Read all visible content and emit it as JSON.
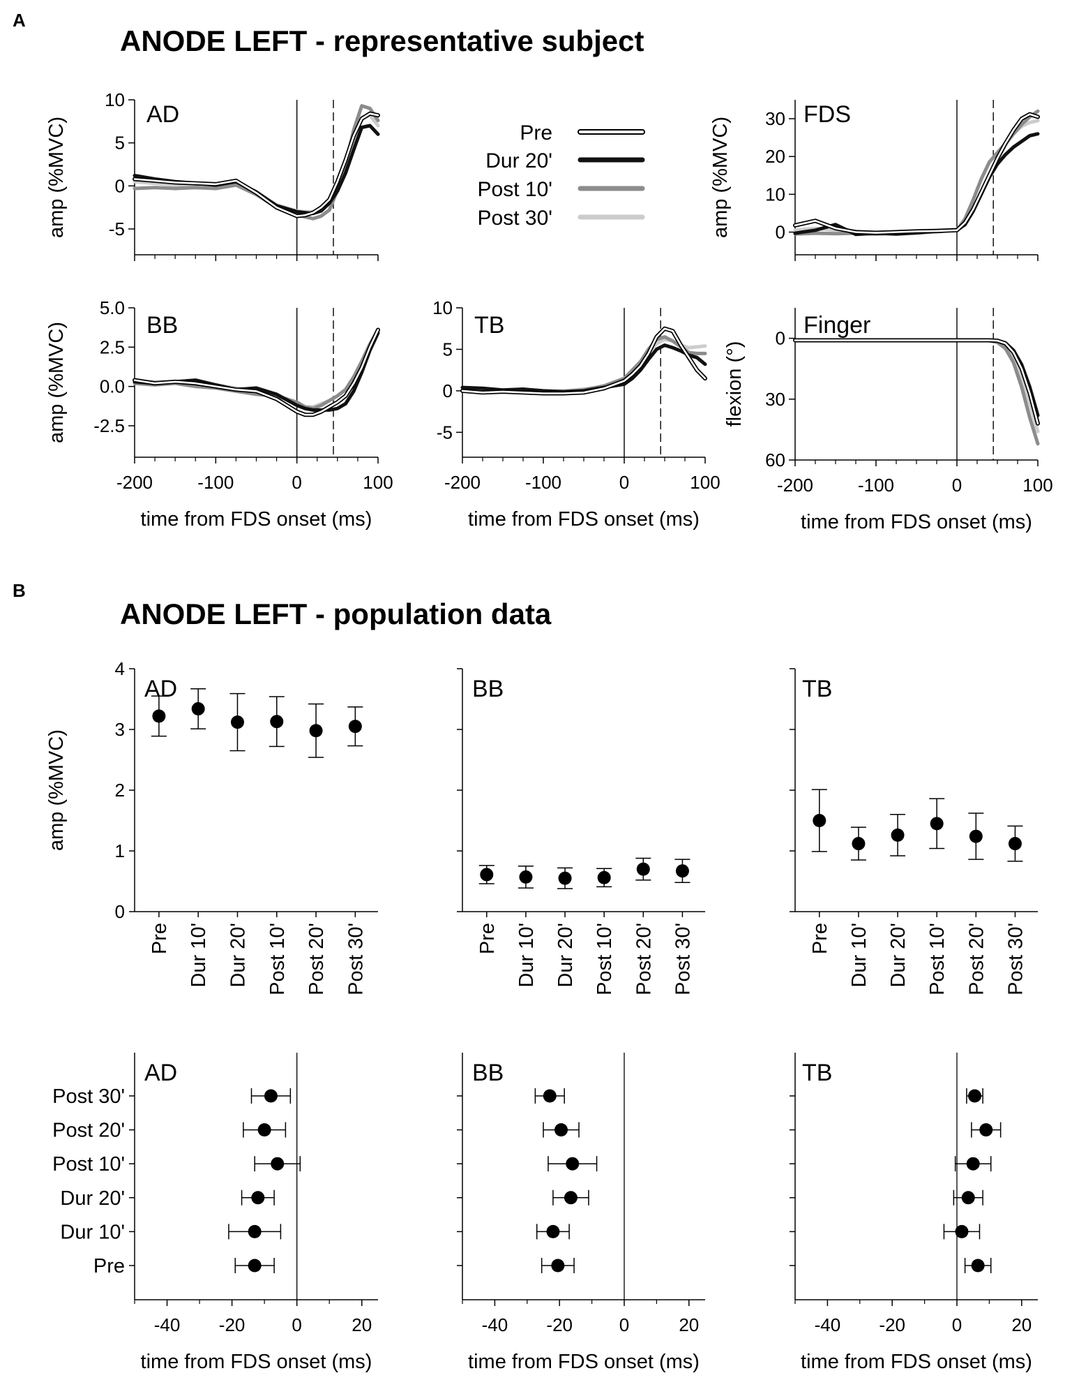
{
  "panel_a": {
    "letter": "A",
    "title": "ANODE LEFT - representative subject"
  },
  "panel_b": {
    "letter": "B",
    "title": "ANODE LEFT - population data"
  },
  "legend": {
    "items": [
      {
        "label": "Pre",
        "style": "outlined",
        "color": "#000000"
      },
      {
        "label": "Dur 20'",
        "style": "solid",
        "color": "#111111"
      },
      {
        "label": "Post 10'",
        "style": "solid",
        "color": "#8c8c8c"
      },
      {
        "label": "Post 30'",
        "style": "solid",
        "color": "#cccccc"
      }
    ]
  },
  "chart_data": [
    {
      "id": "a_ad",
      "type": "line",
      "label": "AD",
      "xlabel": "",
      "ylabel": "amp (%MVC)",
      "xlim": [
        -200,
        100
      ],
      "ylim": [
        -8,
        10
      ],
      "xticks": [
        -200,
        -100,
        0,
        100
      ],
      "xtick_labels": [],
      "yticks": [
        -5,
        0,
        5,
        10
      ],
      "ytick_labels": [
        "-5",
        "0",
        "5",
        "10"
      ],
      "vlines": [
        {
          "x": 0,
          "style": "solid"
        },
        {
          "x": 45,
          "style": "dashed"
        }
      ],
      "x": [
        -200,
        -175,
        -150,
        -125,
        -100,
        -75,
        -50,
        -25,
        0,
        10,
        20,
        30,
        40,
        50,
        60,
        70,
        80,
        90,
        100
      ],
      "series": [
        {
          "name": "Pre",
          "values": [
            0.8,
            0.6,
            0.4,
            0.3,
            0.2,
            0.6,
            -0.8,
            -2.5,
            -3.5,
            -3.4,
            -3.1,
            -2.5,
            -1.6,
            0.5,
            3.0,
            5.8,
            7.8,
            8.4,
            8.2
          ]
        },
        {
          "name": "Dur 20'",
          "values": [
            1.2,
            0.8,
            0.5,
            0.3,
            0.1,
            0.5,
            -0.7,
            -2.3,
            -3.0,
            -3.1,
            -3.2,
            -2.9,
            -2.0,
            -0.6,
            1.5,
            4.2,
            6.8,
            7.0,
            6.0
          ]
        },
        {
          "name": "Post 10'",
          "values": [
            -0.3,
            -0.2,
            -0.3,
            -0.2,
            -0.3,
            0.1,
            -1.0,
            -2.5,
            -3.3,
            -3.6,
            -3.8,
            -3.5,
            -2.8,
            -0.5,
            2.5,
            6.5,
            9.3,
            9.0,
            7.6
          ]
        },
        {
          "name": "Post 30'",
          "values": [
            0.5,
            0.3,
            0.1,
            0.0,
            -0.1,
            0.2,
            -0.8,
            -2.2,
            -2.9,
            -3.0,
            -3.0,
            -2.7,
            -2.0,
            -0.6,
            1.8,
            5.2,
            8.0,
            8.2,
            7.0
          ]
        }
      ]
    },
    {
      "id": "a_fds",
      "type": "line",
      "label": "FDS",
      "xlabel": "",
      "ylabel": "amp (%MVC)",
      "xlim": [
        -200,
        100
      ],
      "ylim": [
        -6,
        35
      ],
      "xticks": [
        -200,
        -100,
        0,
        100
      ],
      "xtick_labels": [],
      "yticks": [
        0,
        10,
        20,
        30
      ],
      "ytick_labels": [
        "0",
        "10",
        "20",
        "30"
      ],
      "vlines": [
        {
          "x": 0,
          "style": "solid"
        },
        {
          "x": 45,
          "style": "dashed"
        }
      ],
      "x": [
        -200,
        -175,
        -150,
        -125,
        -100,
        -75,
        -50,
        -25,
        0,
        10,
        20,
        30,
        40,
        50,
        60,
        70,
        80,
        90,
        100
      ],
      "series": [
        {
          "name": "Pre",
          "values": [
            1.8,
            3.0,
            1.0,
            0.0,
            -0.2,
            0.0,
            0.2,
            0.3,
            0.5,
            2.5,
            6.0,
            10.5,
            15.0,
            19.5,
            23.5,
            27.0,
            30.0,
            31.2,
            30.5
          ]
        },
        {
          "name": "Dur 20'",
          "values": [
            -0.3,
            0.5,
            2.0,
            -0.6,
            -0.3,
            -0.5,
            -0.2,
            0.3,
            0.5,
            2.0,
            5.5,
            10.0,
            14.5,
            18.0,
            20.5,
            22.5,
            24.0,
            25.5,
            26.0
          ]
        },
        {
          "name": "Post 10'",
          "values": [
            -0.5,
            -0.3,
            -0.4,
            -0.3,
            -0.5,
            -0.3,
            -0.2,
            0.1,
            0.5,
            3.5,
            8.5,
            14.0,
            18.5,
            21.0,
            23.5,
            26.0,
            28.5,
            30.5,
            32.0
          ]
        },
        {
          "name": "Post 30'",
          "values": [
            0.5,
            1.0,
            0.5,
            0.2,
            0.0,
            0.1,
            0.3,
            0.5,
            0.8,
            2.5,
            6.0,
            10.5,
            15.0,
            19.0,
            23.0,
            26.0,
            28.0,
            29.0,
            29.5
          ]
        }
      ]
    },
    {
      "id": "a_bb",
      "type": "line",
      "label": "BB",
      "xlabel": "",
      "ylabel": "amp (%MVC)",
      "xlim": [
        -200,
        100
      ],
      "ylim": [
        -4.5,
        5.0
      ],
      "xticks": [
        -200,
        -100,
        0,
        100
      ],
      "xtick_labels": [],
      "yticks": [
        -2.5,
        0.0,
        2.5,
        5.0
      ],
      "ytick_labels": [
        "-2.5",
        "0.0",
        "2.5",
        "5.0"
      ],
      "vlines": [
        {
          "x": 0,
          "style": "solid"
        },
        {
          "x": 45,
          "style": "dashed"
        }
      ],
      "x": [
        -200,
        -175,
        -150,
        -125,
        -100,
        -75,
        -50,
        -25,
        0,
        10,
        20,
        30,
        40,
        50,
        60,
        70,
        80,
        90,
        100
      ],
      "series": [
        {
          "name": "Pre",
          "values": [
            0.4,
            0.2,
            0.3,
            0.2,
            0.0,
            -0.2,
            -0.3,
            -0.8,
            -1.6,
            -1.8,
            -1.8,
            -1.6,
            -1.3,
            -1.0,
            -0.6,
            0.2,
            1.2,
            2.5,
            3.6
          ]
        },
        {
          "name": "Dur 20'",
          "values": [
            0.3,
            0.2,
            0.3,
            0.4,
            0.1,
            -0.2,
            -0.1,
            -0.5,
            -1.2,
            -1.4,
            -1.5,
            -1.5,
            -1.5,
            -1.4,
            -1.1,
            -0.3,
            0.9,
            2.3,
            3.4
          ]
        },
        {
          "name": "Post 10'",
          "values": [
            0.2,
            0.1,
            0.2,
            0.0,
            -0.1,
            -0.3,
            -0.5,
            -0.6,
            -1.0,
            -1.3,
            -1.4,
            -1.2,
            -0.9,
            -0.6,
            -0.2,
            0.6,
            1.6,
            2.7,
            3.6
          ]
        },
        {
          "name": "Post 30'",
          "values": [
            0.3,
            0.3,
            0.3,
            0.2,
            0.1,
            -0.1,
            -0.3,
            -0.6,
            -1.1,
            -1.3,
            -1.3,
            -1.1,
            -0.9,
            -0.6,
            -0.2,
            0.5,
            1.5,
            2.7,
            3.5
          ]
        }
      ]
    },
    {
      "id": "a_tb",
      "type": "line",
      "label": "TB",
      "xlabel": "",
      "ylabel": "",
      "xlim": [
        -200,
        100
      ],
      "ylim": [
        -8,
        10
      ],
      "xticks": [
        -200,
        -100,
        0,
        100
      ],
      "xtick_labels": [],
      "yticks": [
        -5,
        0,
        5,
        10
      ],
      "ytick_labels": [
        "-5",
        "0",
        "5",
        "10"
      ],
      "vlines": [
        {
          "x": 0,
          "style": "solid"
        },
        {
          "x": 45,
          "style": "dashed"
        }
      ],
      "x": [
        -200,
        -175,
        -150,
        -125,
        -100,
        -75,
        -50,
        -25,
        0,
        10,
        20,
        30,
        40,
        50,
        60,
        70,
        80,
        90,
        100
      ],
      "series": [
        {
          "name": "Pre",
          "values": [
            0.0,
            -0.2,
            -0.1,
            -0.2,
            -0.3,
            -0.3,
            -0.2,
            0.3,
            1.2,
            2.0,
            3.0,
            4.5,
            6.5,
            7.5,
            7.2,
            5.5,
            4.0,
            2.5,
            1.5
          ]
        },
        {
          "name": "Dur 20'",
          "values": [
            0.4,
            0.3,
            0.1,
            0.2,
            0.0,
            -0.1,
            0.0,
            0.4,
            0.8,
            1.5,
            2.5,
            3.8,
            5.0,
            5.5,
            5.2,
            4.8,
            4.3,
            4.0,
            3.2
          ]
        },
        {
          "name": "Post 10'",
          "values": [
            0.0,
            -0.1,
            0.0,
            -0.1,
            -0.2,
            -0.1,
            0.1,
            0.6,
            1.5,
            2.5,
            3.5,
            5.0,
            6.2,
            6.5,
            6.0,
            5.3,
            4.6,
            4.5,
            4.5
          ]
        },
        {
          "name": "Post 30'",
          "values": [
            0.1,
            0.0,
            0.0,
            0.0,
            -0.1,
            0.0,
            0.2,
            0.5,
            1.2,
            2.2,
            3.3,
            4.6,
            5.7,
            6.2,
            6.0,
            5.5,
            5.2,
            5.3,
            5.4
          ]
        }
      ]
    },
    {
      "id": "a_finger",
      "type": "line",
      "label": "Finger",
      "xlabel": "time from FDS onset (ms)",
      "ylabel": "flexion (°)",
      "xlim": [
        -200,
        100
      ],
      "ylim": [
        60,
        -15
      ],
      "y_inverted": true,
      "xticks": [
        -200,
        -100,
        0,
        100
      ],
      "xtick_labels": [
        "-200",
        "-100",
        "0",
        "100"
      ],
      "yticks": [
        0,
        30,
        60
      ],
      "ytick_labels": [
        "0",
        "30",
        "60"
      ],
      "vlines": [
        {
          "x": 0,
          "style": "solid"
        },
        {
          "x": 45,
          "style": "dashed"
        }
      ],
      "x": [
        -200,
        -150,
        -100,
        -50,
        0,
        20,
        40,
        50,
        60,
        70,
        80,
        90,
        100
      ],
      "series": [
        {
          "name": "Pre",
          "values": [
            1.0,
            1.0,
            1.0,
            1.0,
            1.0,
            1.0,
            1.0,
            1.2,
            2.5,
            7.0,
            15.0,
            27.0,
            42.0
          ]
        },
        {
          "name": "Dur 20'",
          "values": [
            1.0,
            1.0,
            1.0,
            1.0,
            1.0,
            1.0,
            1.0,
            1.2,
            2.3,
            6.0,
            13.0,
            24.0,
            38.0
          ]
        },
        {
          "name": "Post 10'",
          "values": [
            1.0,
            1.0,
            1.0,
            1.0,
            1.0,
            1.0,
            1.2,
            2.0,
            5.0,
            12.0,
            24.0,
            39.0,
            52.0
          ]
        },
        {
          "name": "Post 30'",
          "values": [
            1.0,
            1.0,
            1.0,
            1.0,
            1.0,
            1.0,
            1.1,
            1.6,
            3.5,
            9.0,
            19.0,
            32.0,
            46.0
          ]
        }
      ]
    },
    {
      "id": "b_ad_amp",
      "type": "scatter",
      "label": "AD",
      "ylabel": "amp (%MVC)",
      "ylim": [
        0,
        4
      ],
      "yticks": [
        0,
        1,
        2,
        3,
        4
      ],
      "ytick_labels": [
        "0",
        "1",
        "2",
        "3",
        "4"
      ],
      "categories": [
        "Pre",
        "Dur 10'",
        "Dur 20'",
        "Post 10'",
        "Post 20'",
        "Post 30'"
      ],
      "values": [
        3.22,
        3.34,
        3.12,
        3.13,
        2.98,
        3.05
      ],
      "errors": [
        0.33,
        0.33,
        0.47,
        0.41,
        0.44,
        0.32
      ]
    },
    {
      "id": "b_bb_amp",
      "type": "scatter",
      "label": "BB",
      "ylabel": "",
      "ylim": [
        0,
        4
      ],
      "yticks": [
        0,
        1,
        2,
        3,
        4
      ],
      "ytick_labels": [],
      "categories": [
        "Pre",
        "Dur 10'",
        "Dur 20'",
        "Post 10'",
        "Post 20'",
        "Post 30'"
      ],
      "values": [
        0.61,
        0.57,
        0.55,
        0.56,
        0.7,
        0.67
      ],
      "errors": [
        0.15,
        0.18,
        0.17,
        0.15,
        0.18,
        0.19
      ]
    },
    {
      "id": "b_tb_amp",
      "type": "scatter",
      "label": "TB",
      "ylabel": "",
      "ylim": [
        0,
        4
      ],
      "yticks": [
        0,
        1,
        2,
        3,
        4
      ],
      "ytick_labels": [],
      "categories": [
        "Pre",
        "Dur 10'",
        "Dur 20'",
        "Post 10'",
        "Post 20'",
        "Post 30'"
      ],
      "values": [
        1.5,
        1.12,
        1.26,
        1.45,
        1.24,
        1.12
      ],
      "errors": [
        0.51,
        0.27,
        0.34,
        0.41,
        0.38,
        0.29
      ]
    },
    {
      "id": "b_ad_lat",
      "type": "scatter",
      "label": "AD",
      "orientation": "horizontal",
      "xlabel": "time from FDS onset (ms)",
      "xlim": [
        -50,
        25
      ],
      "xticks": [
        -40,
        -20,
        0,
        20
      ],
      "xtick_labels": [
        "-40",
        "-20",
        "0",
        "20"
      ],
      "vline_x": 0,
      "categories": [
        "Pre",
        "Dur 10'",
        "Dur 20'",
        "Post 10'",
        "Post 20'",
        "Post 30'"
      ],
      "values": [
        -13,
        -13,
        -12,
        -6,
        -10,
        -8
      ],
      "errors": [
        6,
        8,
        5,
        7,
        6.5,
        6
      ]
    },
    {
      "id": "b_bb_lat",
      "type": "scatter",
      "label": "BB",
      "orientation": "horizontal",
      "xlabel": "time from FDS onset (ms)",
      "xlim": [
        -50,
        25
      ],
      "xticks": [
        -40,
        -20,
        0,
        20
      ],
      "xtick_labels": [
        "-40",
        "-20",
        "0",
        "20"
      ],
      "vline_x": 0,
      "categories": [
        "Pre",
        "Dur 10'",
        "Dur 20'",
        "Post 10'",
        "Post 20'",
        "Post 30'"
      ],
      "values": [
        -20.5,
        -22,
        -16.5,
        -16,
        -19.5,
        -23
      ],
      "errors": [
        5,
        5,
        5.5,
        7.5,
        5.5,
        4.5
      ]
    },
    {
      "id": "b_tb_lat",
      "type": "scatter",
      "label": "TB",
      "orientation": "horizontal",
      "xlabel": "time from FDS onset (ms)",
      "xlim": [
        -50,
        25
      ],
      "xticks": [
        -40,
        -20,
        0,
        20
      ],
      "xtick_labels": [
        "-40",
        "-20",
        "0",
        "20"
      ],
      "vline_x": 0,
      "categories": [
        "Pre",
        "Dur 10'",
        "Dur 20'",
        "Post 10'",
        "Post 20'",
        "Post 30'"
      ],
      "values": [
        6.5,
        1.5,
        3.5,
        5,
        9,
        5.5
      ],
      "errors": [
        4,
        5.5,
        4.5,
        5.5,
        4.5,
        2.5
      ]
    }
  ]
}
